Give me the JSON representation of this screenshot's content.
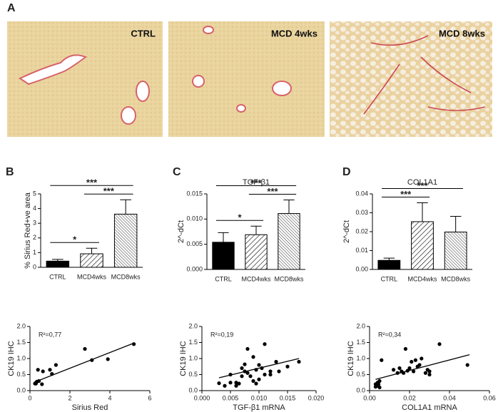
{
  "panel_labels": [
    "A",
    "B",
    "C",
    "D"
  ],
  "images": [
    {
      "label": "CTRL"
    },
    {
      "label": "MCD 4wks"
    },
    {
      "label": "MCD 8wks"
    }
  ],
  "chart_data": [
    {
      "type": "bar",
      "ylabel": "% Sirius Red+ve area",
      "categories": [
        "CTRL",
        "MCD4wks",
        "MCD8wks"
      ],
      "values": [
        0.42,
        0.92,
        3.62
      ],
      "errors": [
        0.12,
        0.38,
        0.98
      ],
      "fills": [
        "solid",
        "diagonal",
        "diagonal-dense"
      ],
      "color": "#000000",
      "ylim": [
        0,
        5
      ],
      "yticks": [
        0,
        1,
        2,
        3,
        4,
        5
      ],
      "annotations": [
        {
          "label": "*",
          "from": "CTRL",
          "to": "MCD4wks"
        },
        {
          "label": "***",
          "from": "MCD4wks",
          "to": "MCD8wks"
        },
        {
          "label": "***",
          "from": "CTRL",
          "to": "MCD8wks"
        }
      ]
    },
    {
      "type": "bar",
      "title": "TGF-β1",
      "ylabel": "2^-dCt",
      "categories": [
        "CTRL",
        "MCD4wks",
        "MCD8wks"
      ],
      "values": [
        0.0054,
        0.0069,
        0.0111
      ],
      "errors": [
        0.0019,
        0.0017,
        0.0027
      ],
      "fills": [
        "solid",
        "diagonal",
        "diagonal-dense"
      ],
      "color": "#000000",
      "ylim": [
        0,
        0.015
      ],
      "yticks": [
        {
          "value": 0,
          "label": "0.000"
        },
        {
          "value": 0.005,
          "label": "0.005"
        },
        {
          "value": 0.01,
          "label": "0.010"
        },
        {
          "value": 0.015,
          "label": "0.015"
        }
      ],
      "annotations": [
        {
          "label": "*",
          "from": "CTRL",
          "to": "MCD4wks"
        },
        {
          "label": "***",
          "from": "MCD4wks",
          "to": "MCD8wks"
        },
        {
          "label": "***",
          "from": "CTRL",
          "to": "MCD8wks"
        }
      ]
    },
    {
      "type": "bar",
      "title": "COL1A1",
      "ylabel": "2^-dCt",
      "categories": [
        "CTRL",
        "MCD4wks",
        "MCD8wks"
      ],
      "values": [
        0.0048,
        0.0253,
        0.0198
      ],
      "errors": [
        0.0012,
        0.01,
        0.0083
      ],
      "fills": [
        "solid",
        "diagonal",
        "diagonal-dense"
      ],
      "color": "#000000",
      "ylim": [
        0,
        0.04
      ],
      "yticks": [
        {
          "value": 0,
          "label": "0.00"
        },
        {
          "value": 0.01,
          "label": "0.01"
        },
        {
          "value": 0.02,
          "label": "0.02"
        },
        {
          "value": 0.03,
          "label": "0.03"
        },
        {
          "value": 0.04,
          "label": "0.04"
        }
      ],
      "annotations": [
        {
          "label": "***",
          "from": "CTRL",
          "to": "MCD4wks"
        },
        {
          "label": "***",
          "from": "CTRL",
          "to": "MCD8wks"
        }
      ]
    },
    {
      "type": "scatter",
      "xlabel": "Sirius Red",
      "ylabel": "CK19 IHC",
      "annotation": "R²=0,77",
      "color": "#000000",
      "x": [
        0.25,
        0.3,
        0.3,
        0.35,
        0.45,
        0.4,
        0.6,
        0.65,
        1.0,
        1.1,
        1.3,
        2.75,
        3.1,
        3.9,
        5.2
      ],
      "y": [
        0.22,
        0.22,
        0.25,
        0.28,
        0.3,
        0.65,
        0.2,
        0.6,
        0.65,
        0.52,
        0.8,
        1.3,
        0.95,
        0.98,
        1.45
      ],
      "fit": {
        "x": [
          0.25,
          5.2
        ],
        "y": [
          0.27,
          1.48
        ]
      },
      "xlim": [
        0,
        6
      ],
      "xticks": [
        0,
        2,
        4,
        6
      ],
      "ylim": [
        0,
        2
      ],
      "yticks": [
        {
          "value": 0,
          "label": "0.0"
        },
        {
          "value": 0.5,
          "label": "0.5"
        },
        {
          "value": 1,
          "label": "1.0"
        },
        {
          "value": 1.5,
          "label": "1.5"
        },
        {
          "value": 2,
          "label": "2.0"
        }
      ]
    },
    {
      "type": "scatter",
      "xlabel": "TGF-β1 mRNA",
      "ylabel": "CK19 IHC",
      "annotation": "R²=0,19",
      "color": "#000000",
      "x": [
        0.003,
        0.004,
        0.005,
        0.005,
        0.006,
        0.006,
        0.0065,
        0.007,
        0.007,
        0.0075,
        0.0075,
        0.008,
        0.008,
        0.0085,
        0.009,
        0.009,
        0.0095,
        0.0095,
        0.01,
        0.01,
        0.0105,
        0.011,
        0.011,
        0.012,
        0.012,
        0.013,
        0.0135,
        0.015,
        0.017
      ],
      "y": [
        0.23,
        0.15,
        0.25,
        0.5,
        0.25,
        0.15,
        0.22,
        0.7,
        0.45,
        0.82,
        0.6,
        1.3,
        0.55,
        0.45,
        0.3,
        1.05,
        0.65,
        0.22,
        0.8,
        0.35,
        0.7,
        1.45,
        0.5,
        0.6,
        0.5,
        0.9,
        0.6,
        0.75,
        0.9
      ],
      "fit": {
        "x": [
          0.003,
          0.017
        ],
        "y": [
          0.4,
          1.0
        ]
      },
      "xlim": [
        0,
        0.02
      ],
      "xticks": [
        {
          "value": 0,
          "label": "0.000"
        },
        {
          "value": 0.005,
          "label": "0.005"
        },
        {
          "value": 0.01,
          "label": "0.010"
        },
        {
          "value": 0.015,
          "label": "0.015"
        },
        {
          "value": 0.02,
          "label": "0.020"
        }
      ],
      "ylim": [
        0,
        2
      ],
      "yticks": [
        {
          "value": 0,
          "label": "0.0"
        },
        {
          "value": 0.5,
          "label": "0.5"
        },
        {
          "value": 1,
          "label": "1.0"
        },
        {
          "value": 1.5,
          "label": "1.5"
        },
        {
          "value": 2,
          "label": "2.0"
        }
      ]
    },
    {
      "type": "scatter",
      "xlabel": "COL1A1 mRNA",
      "ylabel": "CK19 IHC",
      "annotation": "R²=0,34",
      "color": "#000000",
      "x": [
        0.003,
        0.003,
        0.004,
        0.004,
        0.0045,
        0.005,
        0.005,
        0.006,
        0.012,
        0.014,
        0.015,
        0.016,
        0.017,
        0.018,
        0.019,
        0.02,
        0.021,
        0.022,
        0.023,
        0.024,
        0.025,
        0.026,
        0.028,
        0.029,
        0.03,
        0.03,
        0.035,
        0.049
      ],
      "y": [
        0.12,
        0.2,
        0.15,
        0.25,
        0.2,
        0.3,
        0.1,
        0.95,
        0.65,
        0.55,
        0.7,
        0.6,
        0.55,
        1.3,
        0.62,
        0.7,
        0.9,
        0.6,
        0.95,
        0.75,
        0.8,
        1.0,
        0.55,
        0.65,
        0.5,
        0.6,
        1.45,
        0.8
      ],
      "fit": {
        "x": [
          0.003,
          0.05
        ],
        "y": [
          0.35,
          1.12
        ]
      },
      "xlim": [
        0,
        0.06
      ],
      "xticks": [
        {
          "value": 0,
          "label": "0.00"
        },
        {
          "value": 0.02,
          "label": "0.02"
        },
        {
          "value": 0.04,
          "label": "0.04"
        },
        {
          "value": 0.06,
          "label": "0.06"
        }
      ],
      "ylim": [
        0,
        2
      ],
      "yticks": [
        {
          "value": 0,
          "label": "0.0"
        },
        {
          "value": 0.5,
          "label": "0.5"
        },
        {
          "value": 1,
          "label": "1.0"
        },
        {
          "value": 1.5,
          "label": "1.5"
        },
        {
          "value": 2,
          "label": "2.0"
        }
      ]
    }
  ]
}
